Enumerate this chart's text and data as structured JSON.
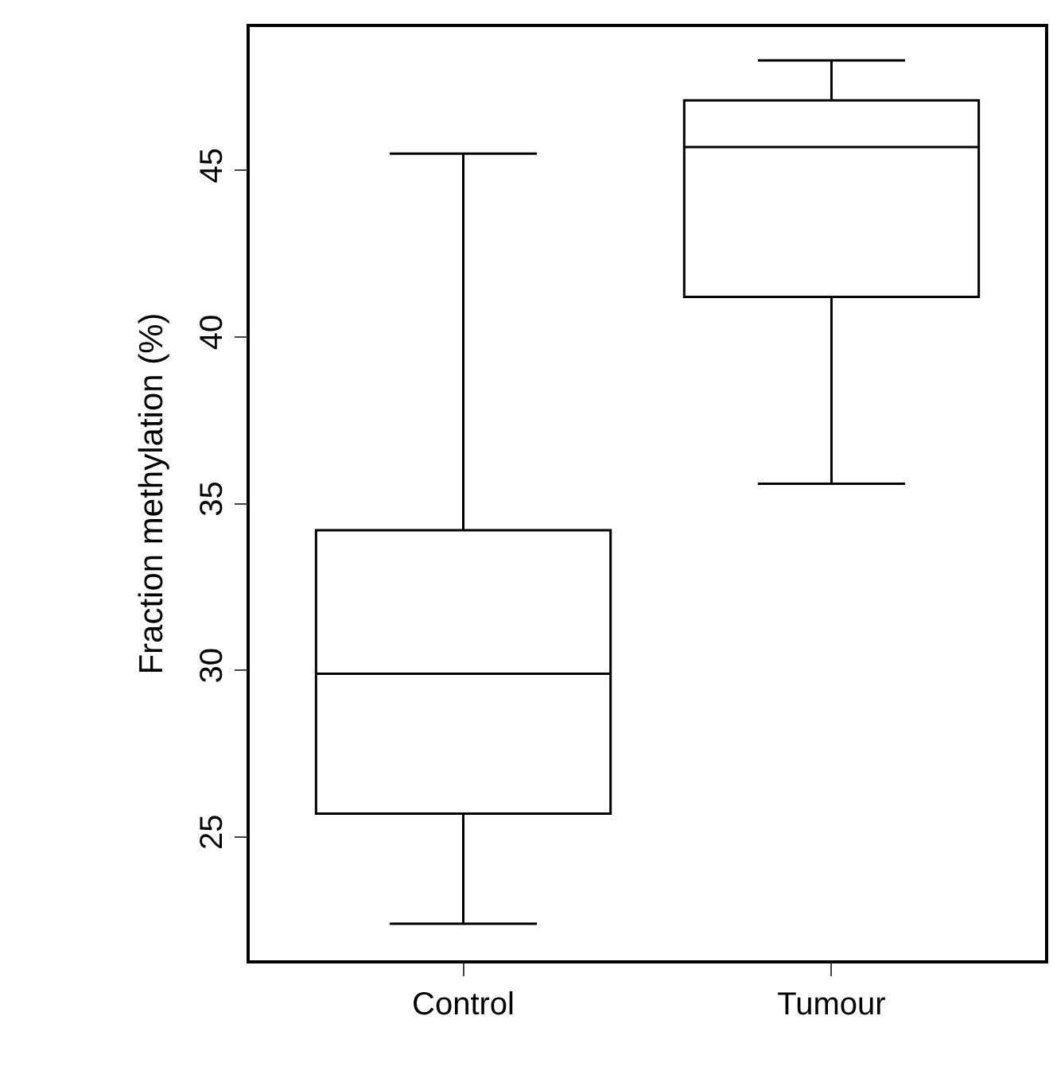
{
  "chart_data": {
    "type": "box",
    "ylabel": "Fraction methylation (%)",
    "categories": [
      "Control",
      "Tumour"
    ],
    "boxes": [
      {
        "low": 22.4,
        "q1": 25.7,
        "median": 29.9,
        "q3": 34.2,
        "high": 45.5
      },
      {
        "low": 35.6,
        "q1": 41.2,
        "median": 45.7,
        "q3": 47.1,
        "high": 48.3
      }
    ],
    "ylim": [
      21.3,
      49.3
    ],
    "yticks": [
      25,
      30,
      35,
      40,
      45
    ]
  }
}
